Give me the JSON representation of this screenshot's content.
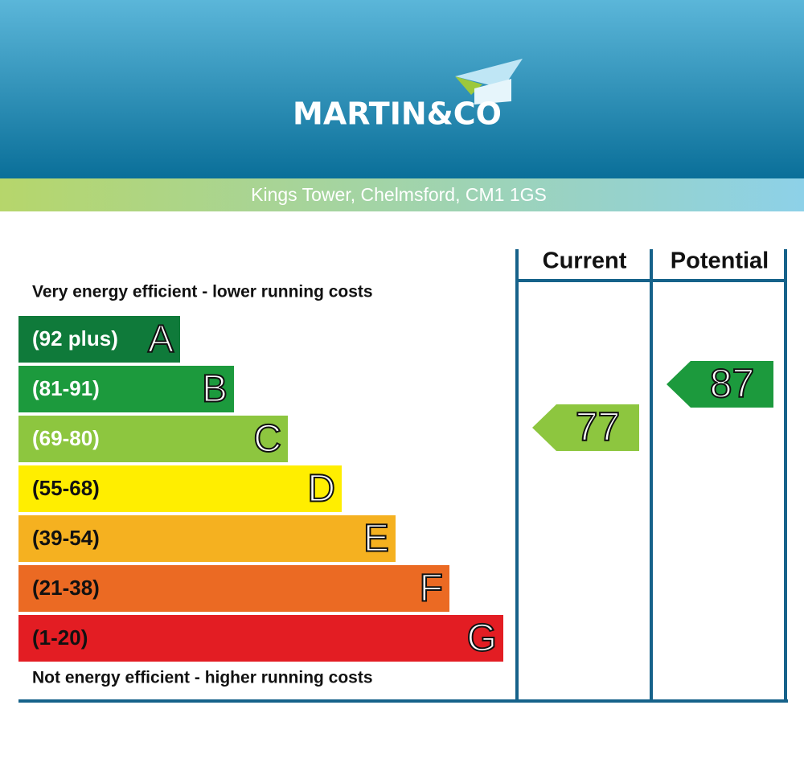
{
  "header": {
    "logo": "MARTIN&CO",
    "address": "Kings Tower, Chelmsford, CM1 1GS"
  },
  "table": {
    "headers": [
      "Current",
      "Potential"
    ]
  },
  "top_note": "Very energy efficient - lower running costs",
  "bottom_note": "Not energy efficient - higher running costs",
  "bands": [
    {
      "range": "(92 plus)",
      "letter": "A",
      "color": "#0f7a3a"
    },
    {
      "range": "(81-91)",
      "letter": "B",
      "color": "#1c9a3d"
    },
    {
      "range": "(69-80)",
      "letter": "C",
      "color": "#8dc63f"
    },
    {
      "range": "(55-68)",
      "letter": "D",
      "color": "#ffee00"
    },
    {
      "range": "(39-54)",
      "letter": "E",
      "color": "#f5b120"
    },
    {
      "range": "(21-38)",
      "letter": "F",
      "color": "#eb6a23"
    },
    {
      "range": "(1-20)",
      "letter": "G",
      "color": "#e31d23"
    }
  ],
  "current": {
    "value": 77,
    "color": "#8dc63f"
  },
  "potential": {
    "value": 87,
    "color": "#1c9a3d"
  }
}
